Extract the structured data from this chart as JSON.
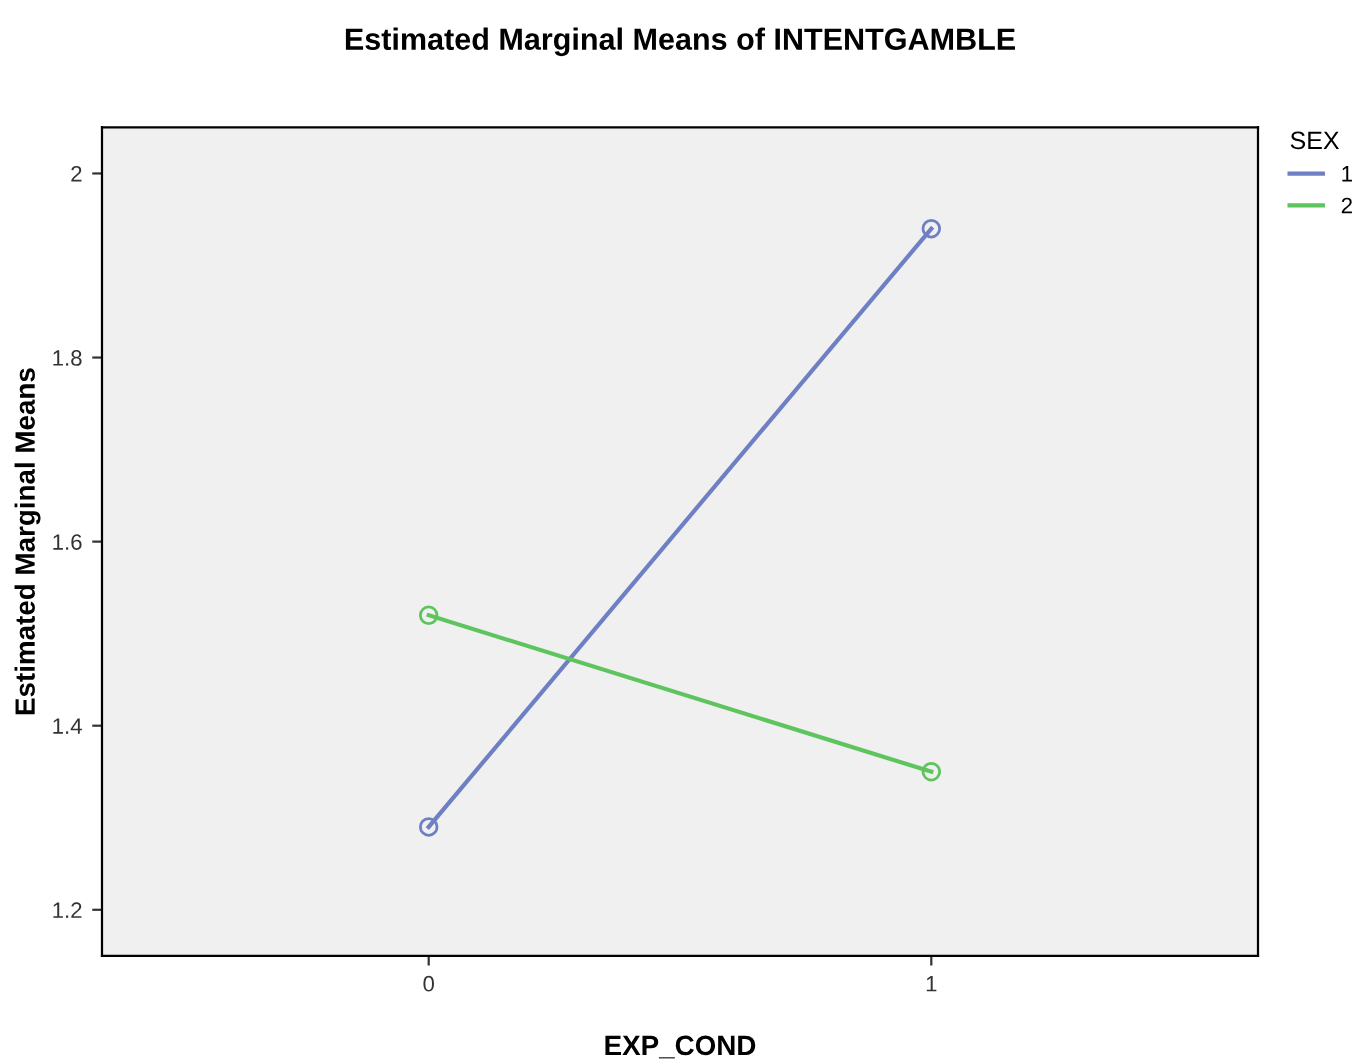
{
  "chart_data": {
    "type": "line",
    "title": "Estimated Marginal Means of INTENTGAMBLE",
    "xlabel": "EXP_COND",
    "ylabel": "Estimated Marginal Means",
    "legend_title": "SEX",
    "categories": [
      "0",
      "1"
    ],
    "series": [
      {
        "name": "1",
        "color": "#6f7fc3",
        "values": [
          1.29,
          1.94
        ]
      },
      {
        "name": "2",
        "color": "#5ec45e",
        "values": [
          1.52,
          1.35
        ]
      }
    ],
    "ylim": [
      1.15,
      2.05
    ],
    "yticks": [
      1.2,
      1.4,
      1.6,
      1.8,
      2
    ],
    "grid": false,
    "legend": "top right",
    "marker": "circle",
    "line_style": "solid"
  }
}
